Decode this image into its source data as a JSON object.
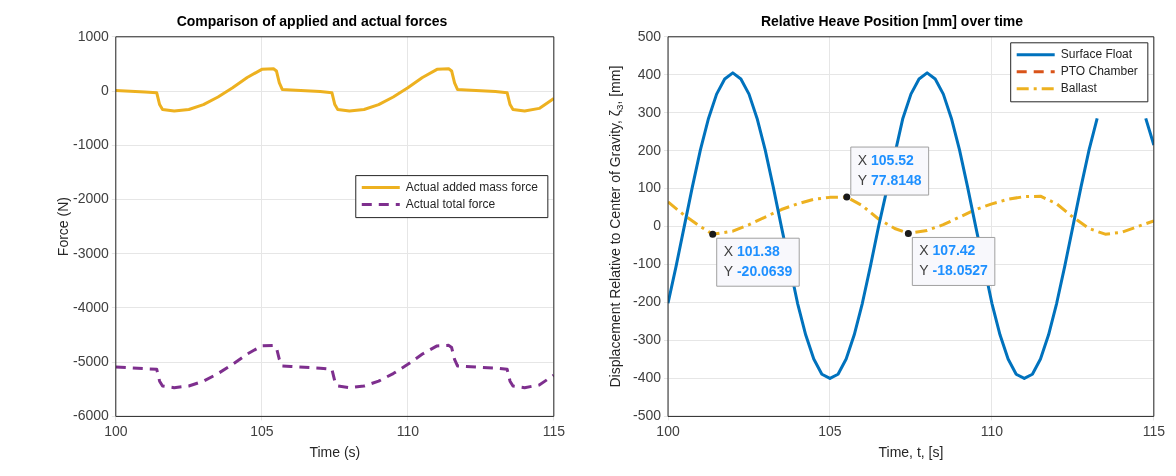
{
  "chart_data": [
    {
      "type": "line",
      "title": "Comparison of applied and actual forces",
      "xlabel": "Time (s)",
      "ylabel": "Force (N)",
      "xlim": [
        100,
        115
      ],
      "xticks": [
        100,
        105,
        110,
        115
      ],
      "ylim": [
        -6000,
        1000
      ],
      "yticks": [
        -6000,
        -5000,
        -4000,
        -3000,
        -2000,
        -1000,
        0,
        1000
      ],
      "grid": true,
      "legend": "right",
      "x": [
        100,
        101,
        101.4,
        101.5,
        101.6,
        102,
        102.5,
        103,
        103.5,
        104,
        104.5,
        105,
        105.4,
        105.5,
        105.6,
        105.7,
        106,
        107,
        107.4,
        107.5,
        107.6,
        108,
        108.5,
        109,
        109.5,
        110,
        110.5,
        111,
        111.4,
        111.5,
        111.6,
        111.7,
        112,
        113,
        113.4,
        113.5,
        113.6,
        114,
        114.5,
        115
      ],
      "series": [
        {
          "name": "Actual added mass force",
          "color": "#edb120",
          "line_style": "solid",
          "values": [
            10,
            -20,
            -30,
            -250,
            -340,
            -370,
            -340,
            -250,
            -110,
            60,
            250,
            400,
            410,
            370,
            150,
            30,
            20,
            -10,
            -30,
            -250,
            -340,
            -370,
            -340,
            -250,
            -110,
            60,
            250,
            400,
            410,
            370,
            150,
            30,
            20,
            -10,
            -30,
            -250,
            -340,
            -370,
            -320,
            -140
          ]
        },
        {
          "name": "Actual total force",
          "color": "#7e2f8e",
          "line_style": "dashed",
          "values": [
            -5090,
            -5120,
            -5130,
            -5350,
            -5440,
            -5470,
            -5440,
            -5350,
            -5210,
            -5040,
            -4850,
            -4700,
            -4690,
            -4730,
            -4950,
            -5070,
            -5080,
            -5110,
            -5130,
            -5350,
            -5440,
            -5470,
            -5440,
            -5350,
            -5210,
            -5040,
            -4850,
            -4700,
            -4690,
            -4730,
            -4950,
            -5070,
            -5080,
            -5110,
            -5130,
            -5350,
            -5440,
            -5470,
            -5420,
            -5240
          ]
        }
      ]
    },
    {
      "type": "line",
      "title": "Relative Heave Position [mm] over time",
      "xlabel": "Time, t, [s]",
      "ylabel": "Displacement Relative to Center of Gravity, ζ$_{3}$, [mm]",
      "xlim": [
        100,
        115
      ],
      "xticks": [
        100,
        105,
        110,
        115
      ],
      "ylim": [
        -500,
        500
      ],
      "yticks": [
        -500,
        -400,
        -300,
        -200,
        -100,
        0,
        100,
        200,
        300,
        400,
        500
      ],
      "grid": true,
      "legend": "top right",
      "annotations": [
        {
          "text": "X 101.38\nY -20.0639",
          "x": 101.38,
          "y": -20.0639
        },
        {
          "text": "X 105.52\nY 77.8148",
          "x": 105.52,
          "y": 77.8148
        },
        {
          "text": "X 107.42\nY -18.0527",
          "x": 107.42,
          "y": -18.0527
        }
      ],
      "series": [
        {
          "name": "Surface Float",
          "color": "#0072bd",
          "line_style": "solid",
          "x": [
            100,
            100.25,
            100.5,
            100.75,
            101,
            101.25,
            101.5,
            101.75,
            102,
            102.25,
            102.5,
            102.75,
            103,
            103.25,
            103.5,
            104,
            104.25,
            104.5,
            104.75,
            105,
            105.25,
            105.5,
            105.75,
            106,
            106.25,
            106.5,
            107.25,
            107.5,
            107.75,
            108,
            108.25,
            108.5,
            108.75,
            109,
            109.25,
            109.5,
            110,
            110.25,
            110.5,
            110.75,
            111,
            111.25,
            111.5,
            111.75,
            112,
            112.25,
            112.5,
            112.75,
            113,
            113.25,
            113.5,
            113.75,
            114,
            114.25,
            114.5,
            114.75,
            115
          ],
          "values": [
            -202,
            -104,
            0,
            104,
            202,
            285,
            349,
            389,
            405,
            389,
            349,
            285,
            202,
            104,
            0,
            -202,
            -285,
            -349,
            -389,
            -400,
            -389,
            -349,
            -285,
            -202,
            -104,
            0,
            285,
            349,
            389,
            405,
            389,
            349,
            285,
            202,
            104,
            0,
            -202,
            -285,
            -349,
            -389,
            -400,
            -389,
            -349,
            -285,
            -202,
            -104,
            0,
            104,
            202,
            285,
            null,
            null,
            null,
            null,
            null,
            285,
            215
          ]
        },
        {
          "name": "PTO Chamber",
          "color": "#d95319",
          "line_style": "dashed"
        },
        {
          "name": "Ballast",
          "color": "#edb120",
          "line_style": "dashdot",
          "x": [
            100,
            100.5,
            101,
            101.38,
            102,
            102.5,
            103,
            103.5,
            104,
            104.5,
            105,
            105.52,
            106,
            106.5,
            107,
            107.42,
            108,
            108.5,
            109,
            109.5,
            110,
            110.5,
            111,
            111.5,
            112,
            112.5,
            113,
            113.5,
            114,
            114.5,
            115
          ],
          "values": [
            65,
            30,
            0,
            -20.0639,
            -12,
            5,
            25,
            45,
            60,
            72,
            77,
            77.8148,
            55,
            20,
            -5,
            -18.0527,
            -10,
            5,
            25,
            45,
            60,
            72,
            79,
            80,
            60,
            25,
            -5,
            -20,
            -15,
            0,
            15
          ]
        }
      ]
    }
  ]
}
